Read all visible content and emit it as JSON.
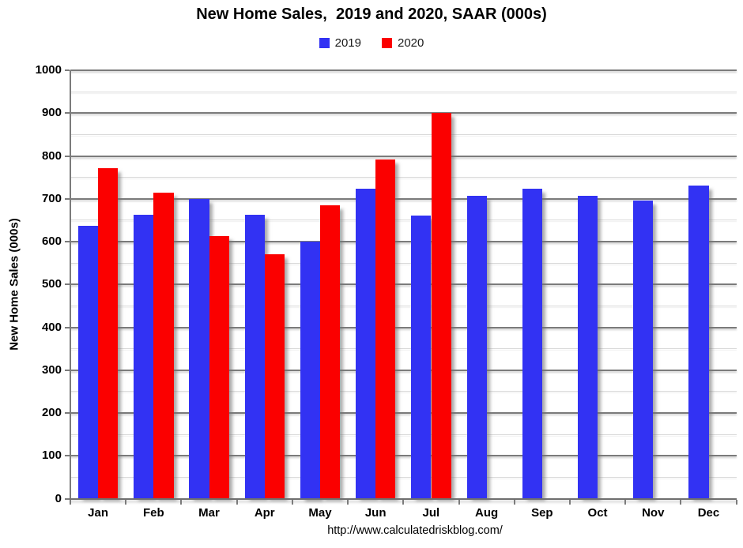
{
  "title": "New Home Sales,  2019 and 2020, SAAR (000s)",
  "footer_url": "http://www.calculatedriskblog.com/",
  "colors": {
    "series_2019": "#3232F3",
    "series_2020": "#FB0000",
    "grid_major": "#7B7B7B",
    "grid_minor": "#D9D9D9",
    "axis_line": "#6F6F6F",
    "text": "#000000"
  },
  "legend": {
    "items": [
      {
        "label": "2019",
        "color": "#3232F3"
      },
      {
        "label": "2020",
        "color": "#FB0000"
      }
    ]
  },
  "y_axis": {
    "title": "New Home Sales (000s)",
    "ticks": [
      0,
      100,
      200,
      300,
      400,
      500,
      600,
      700,
      800,
      900,
      1000
    ]
  },
  "chart_data": {
    "type": "bar",
    "title": "New Home Sales,  2019 and 2020, SAAR (000s)",
    "xlabel": "",
    "ylabel": "New Home Sales (000s)",
    "categories": [
      "Jan",
      "Feb",
      "Mar",
      "Apr",
      "May",
      "Jun",
      "Jul",
      "Aug",
      "Sep",
      "Oct",
      "Nov",
      "Dec"
    ],
    "series": [
      {
        "name": "2019",
        "color": "#3232F3",
        "values": [
          636,
          663,
          699,
          662,
          600,
          723,
          660,
          706,
          724,
          706,
          695,
          730
        ]
      },
      {
        "name": "2020",
        "color": "#FB0000",
        "values": [
          772,
          715,
          612,
          570,
          685,
          791,
          901,
          null,
          null,
          null,
          null,
          null
        ]
      }
    ],
    "ylim": [
      0,
      1000
    ],
    "ytick_step": 100,
    "minor_gridline_step": 50,
    "grid": "horizontal",
    "legend_position": "top-center",
    "source_note": "http://www.calculatedriskblog.com/"
  }
}
